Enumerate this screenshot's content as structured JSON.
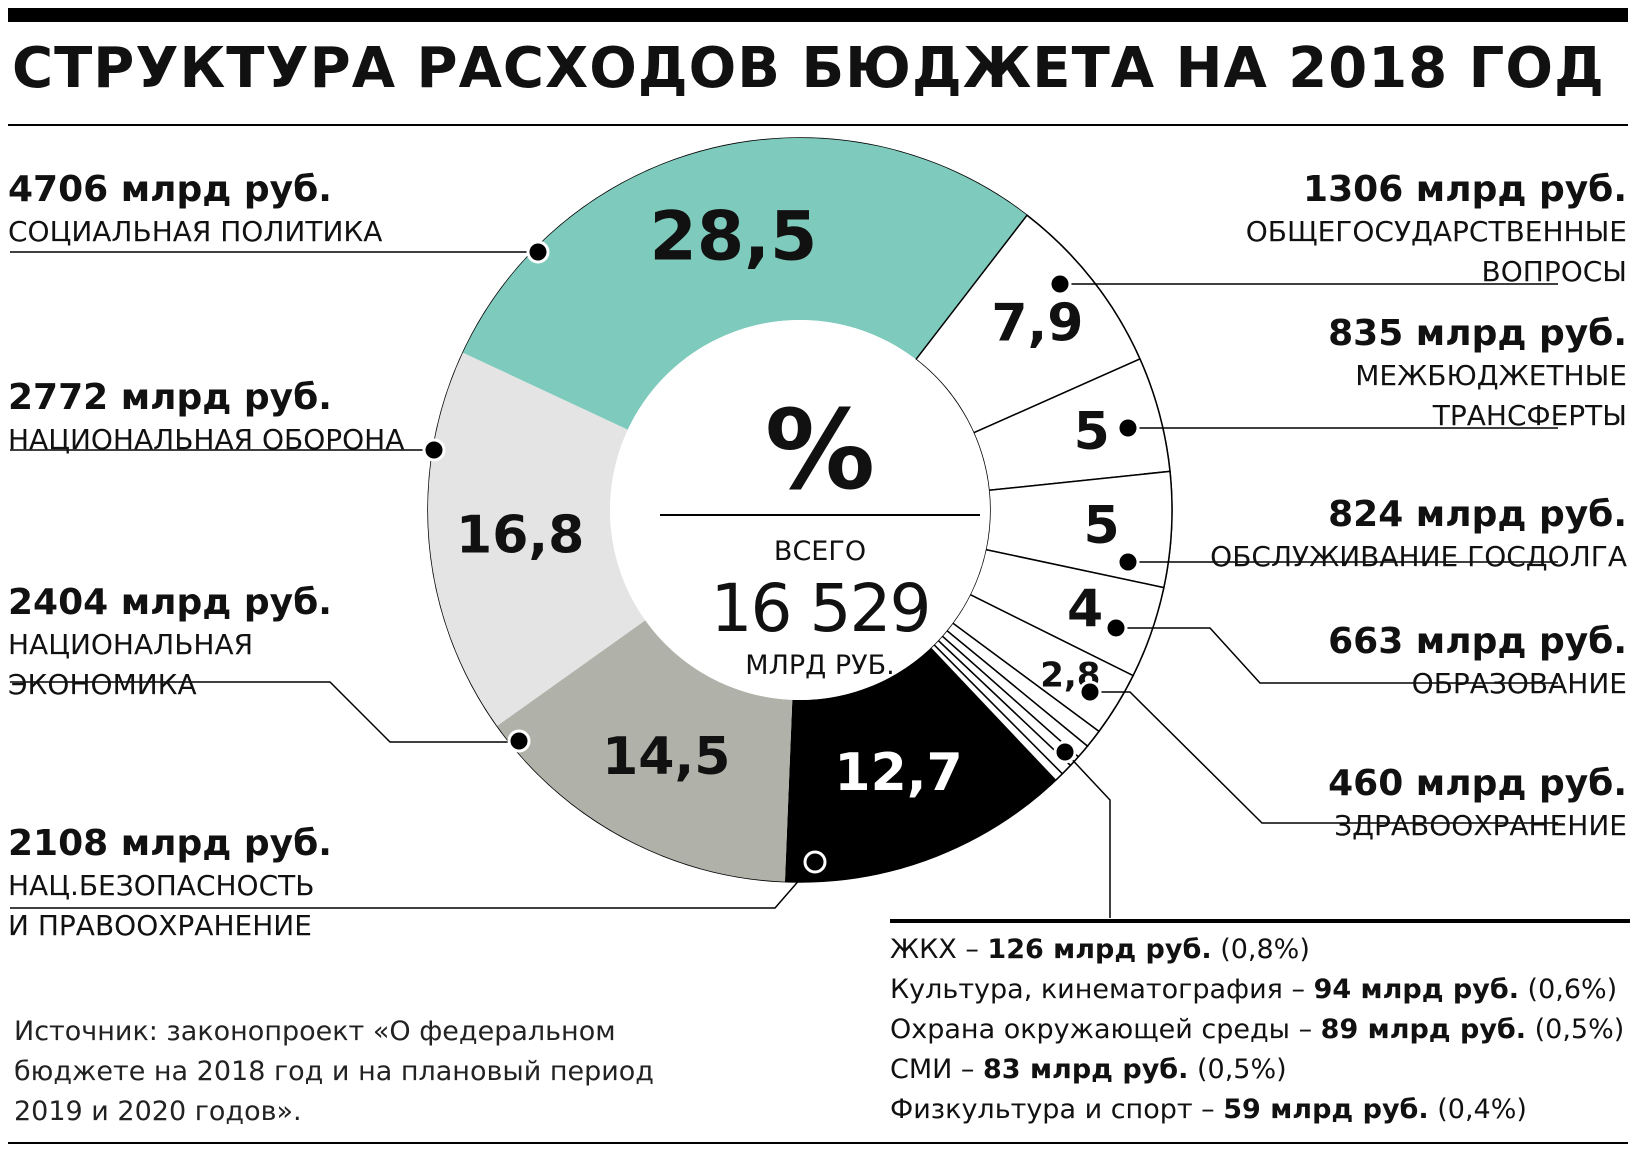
{
  "header": {
    "title": "СТРУКТУРА РАСХОДОВ БЮДЖЕТА НА 2018 ГОД"
  },
  "center": {
    "symbol": "%",
    "caption": "ВСЕГО",
    "total": "16 529",
    "unit": "МЛРД РУБ."
  },
  "chart_data": {
    "type": "pie",
    "title": "СТРУКТУРА РАСХОДОВ БЮДЖЕТА НА 2018 ГОД",
    "unit": "%",
    "total": 16529,
    "total_unit": "млрд руб.",
    "slices": [
      {
        "category": "СОЦИАЛЬНАЯ ПОЛИТИКА",
        "value": 28.5,
        "value_label": "28,5",
        "amount": "4706 млрд руб.",
        "color": "#7ecbbd"
      },
      {
        "category": "ОБЩЕГОСУДАРСТВЕННЫЕ ВОПРОСЫ",
        "value": 7.9,
        "value_label": "7,9",
        "amount": "1306 млрд руб.",
        "color": "#ffffff"
      },
      {
        "category": "МЕЖБЮДЖЕТНЫЕ ТРАНСФЕРТЫ",
        "value": 5,
        "value_label": "5",
        "amount": "835 млрд руб.",
        "color": "#ffffff"
      },
      {
        "category": "ОБСЛУЖИВАНИЕ ГОСДОЛГА",
        "value": 5,
        "value_label": "5",
        "amount": "824 млрд руб.",
        "color": "#ffffff"
      },
      {
        "category": "ОБРАЗОВАНИЕ",
        "value": 4,
        "value_label": "4",
        "amount": "663 млрд руб.",
        "color": "#ffffff"
      },
      {
        "category": "ЗДРАВООХРАНЕНИЕ",
        "value": 2.8,
        "value_label": "2,8",
        "amount": "460 млрд руб.",
        "color": "#ffffff"
      },
      {
        "category": "ЖКХ",
        "value": 0.8,
        "value_label": "",
        "amount": "126 млрд руб.",
        "color": "#ffffff"
      },
      {
        "category": "Культура, кинематография",
        "value": 0.6,
        "value_label": "",
        "amount": "94 млрд руб.",
        "color": "#ffffff"
      },
      {
        "category": "Охрана окружающей среды",
        "value": 0.5,
        "value_label": "",
        "amount": "89 млрд руб.",
        "color": "#ffffff"
      },
      {
        "category": "СМИ",
        "value": 0.5,
        "value_label": "",
        "amount": "83 млрд руб.",
        "color": "#ffffff"
      },
      {
        "category": "Физкультура и спорт",
        "value": 0.4,
        "value_label": "",
        "amount": "59 млрд руб.",
        "color": "#ffffff"
      },
      {
        "category": "НАЦ.БЕЗОПАСНОСТЬ И ПРАВООХРАНЕНИЕ",
        "value": 12.7,
        "value_label": "12,7",
        "amount": "2108 млрд руб.",
        "color": "#000000"
      },
      {
        "category": "НАЦИОНАЛЬНАЯ ЭКОНОМИКА",
        "value": 14.5,
        "value_label": "14,5",
        "amount": "2404 млрд руб.",
        "color": "#b0b2a9"
      },
      {
        "category": "НАЦИОНАЛЬНАЯ ОБОРОНА",
        "value": 16.8,
        "value_label": "16,8",
        "amount": "2772 млрд руб.",
        "color": "#e4e4e4"
      }
    ]
  },
  "labels": {
    "social": {
      "amount": "4706 млрд руб.",
      "category": "СОЦИАЛЬНАЯ ПОЛИТИКА"
    },
    "defense": {
      "amount": "2772 млрд руб.",
      "category": "НАЦИОНАЛЬНАЯ ОБОРОНА"
    },
    "economy": {
      "amount": "2404 млрд руб.",
      "category": "НАЦИОНАЛЬНАЯ\nЭКОНОМИКА"
    },
    "security": {
      "amount": "2108 млрд руб.",
      "category": "НАЦ.БЕЗОПАСНОСТЬ\nИ ПРАВООХРАНЕНИЕ"
    },
    "general": {
      "amount": "1306 млрд руб.",
      "category": "ОБЩЕГОСУДАРСТВЕННЫЕ\nВОПРОСЫ"
    },
    "transfers": {
      "amount": "835 млрд руб.",
      "category": "МЕЖБЮДЖЕТНЫЕ\nТРАНСФЕРТЫ"
    },
    "debt": {
      "amount": "824 млрд руб.",
      "category": "ОБСЛУЖИВАНИЕ ГОСДОЛГА"
    },
    "education": {
      "amount": "663 млрд руб.",
      "category": "ОБРАЗОВАНИЕ"
    },
    "health": {
      "amount": "460 млрд руб.",
      "category": "ЗДРАВООХРАНЕНИЕ"
    }
  },
  "small_items": [
    {
      "name": "ЖКХ – ",
      "amount": "126 млрд руб.",
      "share": " (0,8%)"
    },
    {
      "name": "Культура, кинематография – ",
      "amount": "94 млрд руб.",
      "share": " (0,6%)"
    },
    {
      "name": "Охрана окружающей среды – ",
      "amount": "89 млрд руб.",
      "share": " (0,5%)"
    },
    {
      "name": "СМИ – ",
      "amount": "83 млрд руб.",
      "share": " (0,5%)"
    },
    {
      "name": "Физкультура и спорт – ",
      "amount": "59 млрд руб.",
      "share": " (0,4%)"
    }
  ],
  "source": "Источник: законопроект «О федеральном бюджете на 2018 год и на плановый период 2019 и 2020 годов»."
}
